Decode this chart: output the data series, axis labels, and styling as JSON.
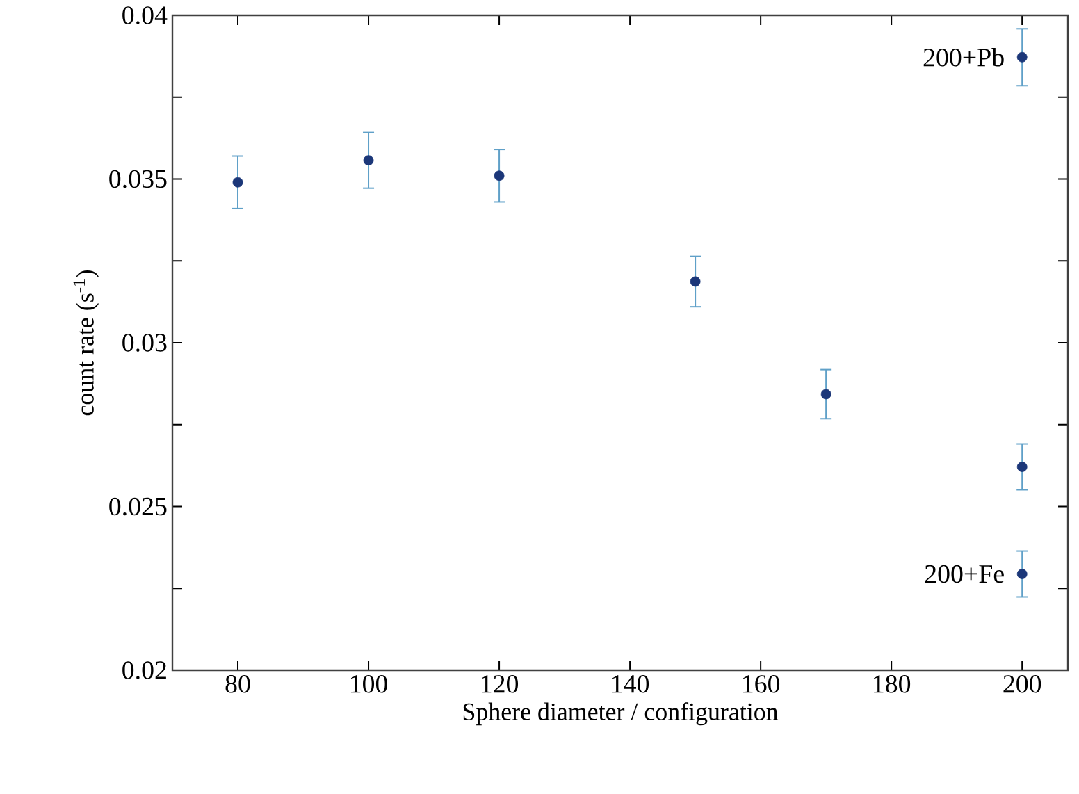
{
  "chart_data": {
    "type": "scatter",
    "xlabel": "Sphere diameter / configuration",
    "ylabel": "count rate (s$^{-1}$)",
    "x": [
      80,
      100,
      120,
      150,
      170,
      200,
      200,
      200
    ],
    "series": [
      {
        "color": "#1c3779",
        "values": [
          0.0349,
          0.03557,
          0.0351,
          0.03187,
          0.02843,
          0.03872,
          0.02621,
          0.02294
        ],
        "errors": [
          0.0008,
          0.00085,
          0.0008,
          0.00077,
          0.00075,
          0.00087,
          0.0007,
          0.0007
        ]
      }
    ],
    "xlim": [
      70,
      207
    ],
    "ylim": [
      0.02,
      0.04
    ],
    "xticks": [
      80,
      100,
      120,
      140,
      160,
      180,
      200
    ],
    "yticks": [
      0.02,
      {
        "value": 0.0225,
        "label": null
      },
      0.025,
      {
        "value": 0.0275,
        "label": null
      },
      0.03,
      {
        "value": 0.0325,
        "label": null
      },
      0.035,
      {
        "value": 0.0375,
        "label": null
      },
      0.04
    ],
    "marker": "circle",
    "annotations": [
      {
        "text": "200+Pb",
        "x": 200,
        "y": 0.03872
      },
      {
        "text": "200+Fe",
        "x": 200,
        "y": 0.02294
      }
    ]
  }
}
